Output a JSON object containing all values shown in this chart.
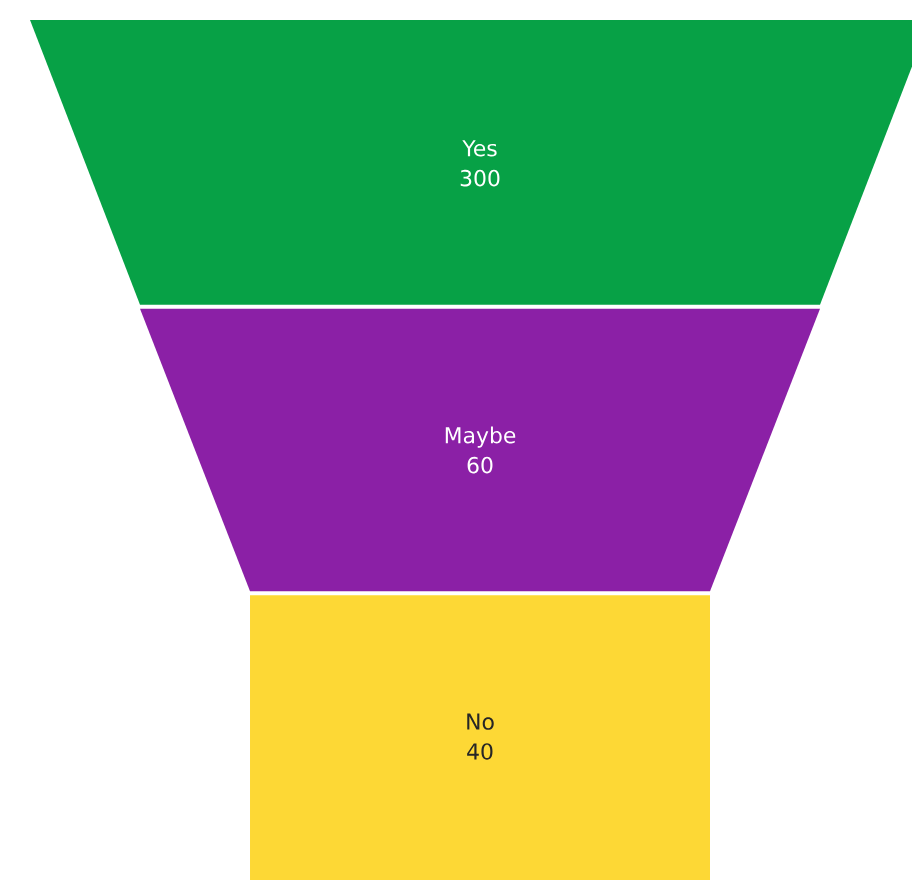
{
  "chart_data": {
    "type": "other",
    "categories": [
      "Yes",
      "Maybe",
      "No"
    ],
    "values": [
      300,
      60,
      40
    ],
    "colors": [
      "#07a146",
      "#8b20a6",
      "#fdd835"
    ],
    "data_labels": true
  }
}
